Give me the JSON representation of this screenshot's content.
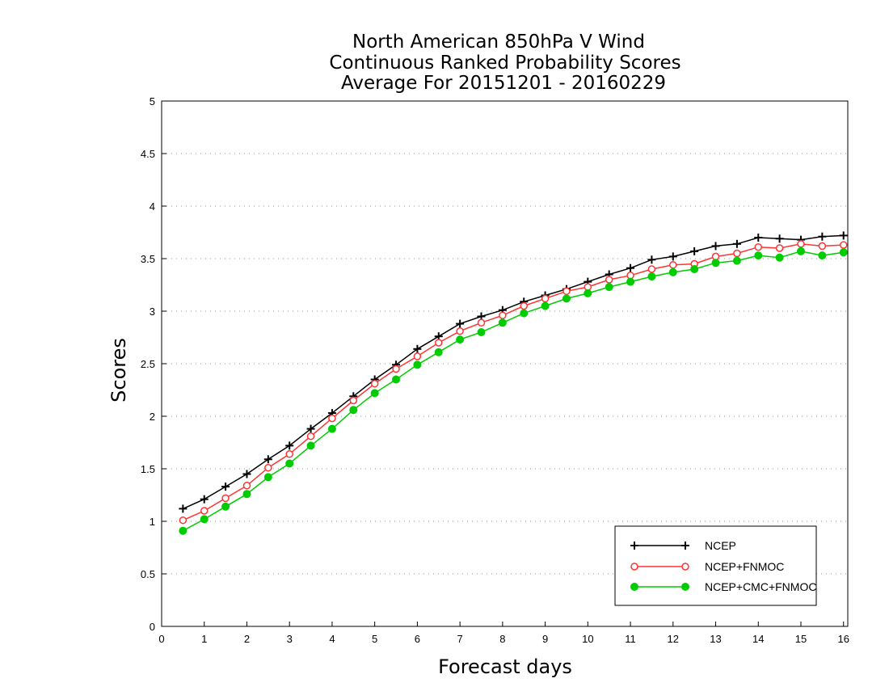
{
  "chart_data": {
    "type": "line",
    "title": [
      "North American 850hPa V Wind",
      "Continuous Ranked Probability Scores",
      "Average For 20151201 - 20160229"
    ],
    "xlabel": "Forecast days",
    "ylabel": "Scores",
    "xlim": [
      0,
      16.1
    ],
    "ylim": [
      0,
      5
    ],
    "xticks": [
      "0",
      "1",
      "2",
      "3",
      "4",
      "5",
      "6",
      "7",
      "8",
      "9",
      "10",
      "11",
      "12",
      "13",
      "14",
      "15",
      "16"
    ],
    "yticks": [
      "0",
      "0.5",
      "1",
      "1.5",
      "2",
      "2.5",
      "3",
      "3.5",
      "4",
      "4.5",
      "5"
    ],
    "grid": "horizontal dotted",
    "legend_position": "bottom-right",
    "x": [
      0.5,
      1,
      1.5,
      2,
      2.5,
      3,
      3.5,
      4,
      4.5,
      5,
      5.5,
      6,
      6.5,
      7,
      7.5,
      8,
      8.5,
      9,
      9.5,
      10,
      10.5,
      11,
      11.5,
      12,
      12.5,
      13,
      13.5,
      14,
      14.5,
      15,
      15.5,
      16
    ],
    "series": [
      {
        "name": "NCEP",
        "color": "#000000",
        "marker": "plus",
        "values": [
          1.12,
          1.21,
          1.33,
          1.45,
          1.59,
          1.72,
          1.88,
          2.03,
          2.19,
          2.35,
          2.49,
          2.64,
          2.76,
          2.88,
          2.95,
          3.01,
          3.09,
          3.15,
          3.21,
          3.28,
          3.35,
          3.41,
          3.49,
          3.52,
          3.57,
          3.62,
          3.64,
          3.7,
          3.69,
          3.68,
          3.71,
          3.72
        ]
      },
      {
        "name": "NCEP+FNMOC",
        "color": "#ff3333",
        "marker": "open-circle",
        "values": [
          1.01,
          1.1,
          1.22,
          1.34,
          1.51,
          1.64,
          1.81,
          1.98,
          2.15,
          2.31,
          2.45,
          2.57,
          2.7,
          2.81,
          2.89,
          2.96,
          3.05,
          3.12,
          3.19,
          3.23,
          3.3,
          3.34,
          3.4,
          3.44,
          3.45,
          3.52,
          3.55,
          3.61,
          3.6,
          3.64,
          3.62,
          3.63
        ]
      },
      {
        "name": "NCEP+CMC+FNMOC",
        "color": "#00cc00",
        "marker": "filled-circle",
        "values": [
          0.91,
          1.02,
          1.14,
          1.26,
          1.42,
          1.55,
          1.72,
          1.88,
          2.06,
          2.22,
          2.35,
          2.49,
          2.61,
          2.73,
          2.8,
          2.89,
          2.98,
          3.05,
          3.12,
          3.17,
          3.23,
          3.28,
          3.33,
          3.37,
          3.4,
          3.46,
          3.48,
          3.53,
          3.51,
          3.57,
          3.53,
          3.56
        ]
      }
    ]
  }
}
